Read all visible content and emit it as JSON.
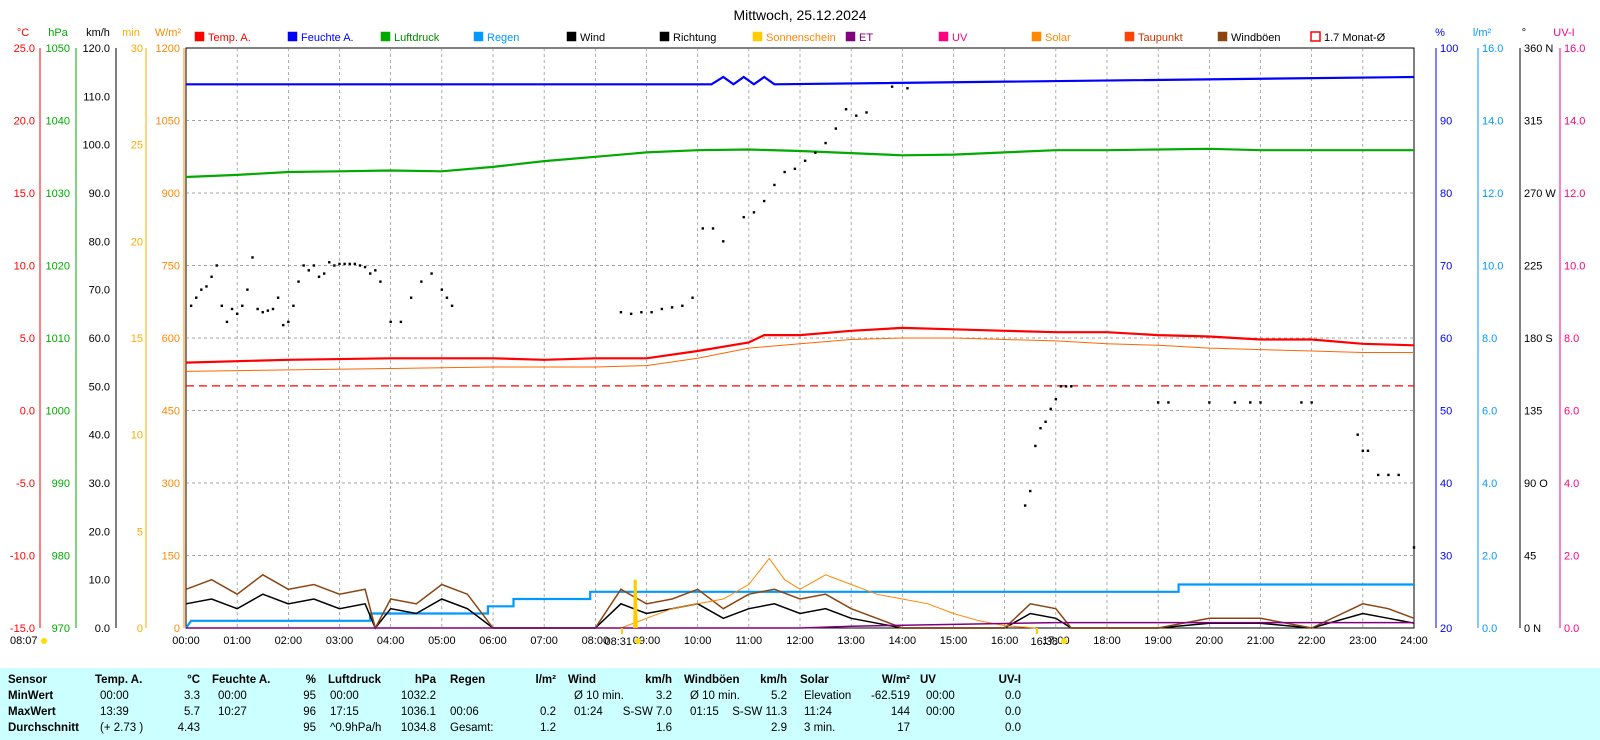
{
  "title": "Mittwoch, 25.12.2024",
  "legend": [
    {
      "label": "Temp. A.",
      "color": "#ff0000"
    },
    {
      "label": "Feuchte A.",
      "color": "#0000ff"
    },
    {
      "label": "Luftdruck",
      "color": "#00aa00"
    },
    {
      "label": "Regen",
      "color": "#0099ff"
    },
    {
      "label": "Wind",
      "color": "#000000"
    },
    {
      "label": "Richtung",
      "color": "#000000"
    },
    {
      "label": "Sonnenschein",
      "color": "#ffcc00"
    },
    {
      "label": "ET",
      "color": "#800080"
    },
    {
      "label": "UV",
      "color": "#ff0080"
    },
    {
      "label": "Solar",
      "color": "#ff8800"
    },
    {
      "label": "Taupunkt",
      "color": "#ff4400"
    },
    {
      "label": "Windböen",
      "color": "#8b4513"
    },
    {
      "label": "1.7 Monat-Ø",
      "color": "#ff0000"
    }
  ],
  "axes_left": [
    {
      "unit": "°C",
      "color": "#ff0000",
      "ticks": [
        "25.0",
        "20.0",
        "15.0",
        "10.0",
        "5.0",
        "0.0",
        "-5.0",
        "-10.0",
        "-15.0"
      ]
    },
    {
      "unit": "hPa",
      "color": "#00aa00",
      "ticks": [
        "1050",
        "1040",
        "1030",
        "1020",
        "1010",
        "1000",
        "990",
        "980",
        "970"
      ]
    },
    {
      "unit": "km/h",
      "color": "#000000",
      "ticks": [
        "120.0",
        "110.0",
        "100.0",
        "90.0",
        "80.0",
        "70.0",
        "60.0",
        "50.0",
        "40.0",
        "30.0",
        "20.0",
        "10.0",
        "0.0"
      ]
    },
    {
      "unit": "min",
      "color": "#ffaa00",
      "ticks": [
        "30",
        "25",
        "20",
        "15",
        "10",
        "5",
        "0"
      ]
    },
    {
      "unit": "W/m²",
      "color": "#ff8800",
      "ticks": [
        "1200",
        "1050",
        "900",
        "750",
        "600",
        "450",
        "300",
        "150",
        "0"
      ]
    }
  ],
  "axes_right": [
    {
      "unit": "%",
      "color": "#0000ff",
      "ticks": [
        "100",
        "90",
        "80",
        "70",
        "60",
        "50",
        "40",
        "30",
        "20"
      ]
    },
    {
      "unit": "l/m²",
      "color": "#0099ff",
      "ticks": [
        "16.0",
        "14.0",
        "12.0",
        "10.0",
        "8.0",
        "6.0",
        "4.0",
        "2.0",
        "0.0"
      ]
    },
    {
      "unit": "°",
      "color": "#000000",
      "ticks": [
        "360 N",
        "315",
        "270 W",
        "225",
        "180 S",
        "135",
        "90 O",
        "45",
        "0 N"
      ]
    },
    {
      "unit": "UV-I",
      "color": "#ff0080",
      "ticks": [
        "16.0",
        "14.0",
        "12.0",
        "10.0",
        "8.0",
        "6.0",
        "4.0",
        "2.0",
        "0.0"
      ]
    }
  ],
  "x_ticks": [
    "00:00",
    "01:00",
    "02:00",
    "03:00",
    "04:00",
    "05:00",
    "06:00",
    "07:00",
    "08:00",
    "09:00",
    "10:00",
    "11:00",
    "12:00",
    "13:00",
    "14:00",
    "15:00",
    "16:00",
    "17:00",
    "18:00",
    "19:00",
    "20:00",
    "21:00",
    "22:00",
    "23:00",
    "24:00"
  ],
  "sun_events": {
    "sunrise_label": "08:07",
    "sunrise_time": "08:31",
    "sunset_time": "16:38"
  },
  "chart_data": {
    "type": "line",
    "title": "Mittwoch, 25.12.2024",
    "x_unit": "hours",
    "xlim": [
      0,
      24
    ],
    "series": [
      {
        "name": "Temp. A.",
        "unit": "°C",
        "color": "#ff0000",
        "x": [
          0,
          2,
          4,
          6,
          7,
          8,
          9,
          10,
          11,
          11.3,
          12,
          13,
          14,
          15,
          16,
          17,
          18,
          19,
          20,
          21,
          22,
          23,
          24
        ],
        "values": [
          3.3,
          3.5,
          3.6,
          3.6,
          3.5,
          3.6,
          3.6,
          4.1,
          4.7,
          5.2,
          5.2,
          5.5,
          5.7,
          5.6,
          5.5,
          5.4,
          5.4,
          5.2,
          5.1,
          4.9,
          4.9,
          4.6,
          4.5
        ]
      },
      {
        "name": "Taupunkt",
        "unit": "°C",
        "color": "#ff6600",
        "x": [
          0,
          2,
          4,
          6,
          8,
          9,
          10,
          11,
          12,
          13,
          14,
          15,
          16,
          17,
          18,
          19,
          20,
          21,
          22,
          23,
          24
        ],
        "values": [
          2.7,
          2.8,
          2.9,
          3.0,
          3.0,
          3.1,
          3.6,
          4.3,
          4.6,
          4.9,
          5.0,
          5.0,
          4.9,
          4.8,
          4.6,
          4.5,
          4.3,
          4.2,
          4.1,
          4.0,
          4.0
        ]
      },
      {
        "name": "Feuchte A.",
        "unit": "%",
        "color": "#0000ff",
        "x": [
          0,
          10.27,
          10.5,
          10.7,
          10.9,
          11.1,
          11.3,
          11.5,
          24
        ],
        "values": [
          95,
          95,
          96,
          95,
          96,
          95,
          96,
          95,
          96
        ]
      },
      {
        "name": "Luftdruck",
        "unit": "hPa",
        "color": "#00aa00",
        "x": [
          0,
          1,
          2,
          3,
          4,
          5,
          6,
          7,
          8,
          9,
          10,
          11,
          12,
          13,
          14,
          15,
          16,
          17,
          18,
          19,
          20,
          21,
          22,
          23,
          24
        ],
        "values": [
          1032.2,
          1032.5,
          1032.9,
          1033.0,
          1033.1,
          1033.0,
          1033.6,
          1034.4,
          1035.0,
          1035.6,
          1035.9,
          1036.0,
          1035.8,
          1035.5,
          1035.2,
          1035.3,
          1035.6,
          1035.9,
          1035.9,
          1036.0,
          1036.1,
          1035.9,
          1035.9,
          1035.9,
          1035.9
        ]
      },
      {
        "name": "1.7 Monat-Ø",
        "unit": "°C",
        "color": "#ff0000",
        "x": [
          0,
          24
        ],
        "values": [
          1.7,
          1.7
        ]
      },
      {
        "name": "Regen",
        "unit": "l/m²",
        "color": "#0099ff",
        "x": [
          0,
          0.1,
          3.6,
          3.6,
          5.9,
          5.9,
          6.4,
          6.4,
          7.9,
          7.9,
          19.4,
          19.4,
          24
        ],
        "values": [
          0,
          0.2,
          0.2,
          0.4,
          0.4,
          0.6,
          0.6,
          0.8,
          0.8,
          1.0,
          1.0,
          1.2,
          1.2
        ]
      },
      {
        "name": "Wind",
        "unit": "km/h",
        "color": "#000000",
        "x": [
          0,
          0.5,
          1,
          1.5,
          2,
          2.5,
          3,
          3.5,
          3.7,
          4,
          4.5,
          5,
          5.5,
          6,
          8,
          8.5,
          9,
          9.5,
          10,
          10.5,
          11,
          11.5,
          12,
          12.5,
          13,
          13.5,
          14,
          16,
          16.5,
          17,
          17.3,
          19,
          20,
          21,
          22,
          23,
          23.5,
          24
        ],
        "values": [
          5,
          6,
          4,
          7,
          5,
          6,
          4,
          5,
          0,
          4,
          3,
          6,
          4,
          0,
          0,
          5,
          3,
          4,
          5,
          2,
          4,
          5,
          3,
          4,
          2,
          1,
          0,
          0,
          3,
          2,
          0,
          0,
          1,
          1,
          0,
          3,
          2,
          1
        ]
      },
      {
        "name": "Windböen",
        "unit": "km/h",
        "color": "#8b4513",
        "x": [
          0,
          0.5,
          1,
          1.5,
          2,
          2.5,
          3,
          3.5,
          3.7,
          4,
          4.5,
          5,
          5.5,
          6,
          8,
          8.5,
          9,
          9.5,
          10,
          10.5,
          11,
          11.5,
          12,
          12.5,
          13,
          13.5,
          14,
          16,
          16.5,
          17,
          17.3,
          19,
          20,
          21,
          22,
          23,
          23.5,
          24
        ],
        "values": [
          8,
          10,
          7,
          11,
          8,
          9,
          7,
          8,
          0,
          6,
          5,
          9,
          7,
          0,
          0,
          8,
          5,
          6,
          8,
          4,
          7,
          8,
          6,
          7,
          4,
          2,
          0,
          0,
          5,
          4,
          0,
          0,
          2,
          2,
          0,
          5,
          4,
          2
        ]
      },
      {
        "name": "Solar",
        "unit": "W/m²",
        "color": "#ff8800",
        "x": [
          8.5,
          9,
          9.5,
          10,
          10.5,
          11,
          11.4,
          11.7,
          12,
          12.5,
          13,
          13.5,
          14,
          14.5,
          15,
          15.5,
          16,
          16.6
        ],
        "values": [
          0,
          20,
          40,
          50,
          60,
          90,
          144,
          100,
          80,
          110,
          90,
          70,
          60,
          50,
          30,
          15,
          5,
          0
        ]
      },
      {
        "name": "ET",
        "unit": "l/m²",
        "color": "#800080",
        "x": [
          0,
          12,
          13,
          15,
          17,
          24
        ],
        "values": [
          0,
          0,
          0.05,
          0.1,
          0.15,
          0.15
        ]
      },
      {
        "name": "Richtung",
        "unit": "°",
        "type": "scatter",
        "color": "#000000",
        "x": [
          0.1,
          0.2,
          0.3,
          0.4,
          0.5,
          0.6,
          0.7,
          0.8,
          0.9,
          1.0,
          1.1,
          1.2,
          1.3,
          1.4,
          1.5,
          1.6,
          1.7,
          1.8,
          1.9,
          2.0,
          2.1,
          2.2,
          2.3,
          2.4,
          2.5,
          2.6,
          2.7,
          2.8,
          2.9,
          3.0,
          3.1,
          3.2,
          3.3,
          3.4,
          3.5,
          3.6,
          3.7,
          3.8,
          4.0,
          4.2,
          4.4,
          4.6,
          4.8,
          5.0,
          5.1,
          5.2,
          8.5,
          8.7,
          8.9,
          9.1,
          9.3,
          9.5,
          9.7,
          9.9,
          10.1,
          10.3,
          10.5,
          10.9,
          11.1,
          11.3,
          11.5,
          11.7,
          11.9,
          12.1,
          12.3,
          12.5,
          12.7,
          12.9,
          13.1,
          13.3,
          13.8,
          14.1,
          16.4,
          16.5,
          16.6,
          16.7,
          16.8,
          16.9,
          17.0,
          17.1,
          17.2,
          17.3,
          19.0,
          19.2,
          20.0,
          20.5,
          20.8,
          21.0,
          21.8,
          22.0,
          22.9,
          23.0,
          23.1,
          23.3,
          23.5,
          23.7,
          24.0
        ],
        "values": [
          200,
          205,
          210,
          212,
          218,
          225,
          200,
          190,
          198,
          195,
          200,
          210,
          230,
          198,
          196,
          197,
          198,
          205,
          188,
          190,
          200,
          215,
          225,
          222,
          225,
          218,
          220,
          227,
          225,
          226,
          226,
          226,
          226,
          225,
          224,
          220,
          222,
          215,
          190,
          190,
          205,
          215,
          220,
          210,
          205,
          200,
          196,
          195,
          196,
          196,
          198,
          199,
          200,
          205,
          248,
          248,
          240,
          255,
          258,
          265,
          275,
          283,
          285,
          290,
          295,
          301,
          310,
          322,
          318,
          320,
          336,
          335,
          76,
          85,
          113,
          124,
          128,
          136,
          142,
          150,
          150,
          150,
          140,
          140,
          140,
          140,
          140,
          140,
          140,
          140,
          120,
          110,
          110,
          95,
          95,
          95,
          50
        ]
      },
      {
        "name": "Sonnenschein",
        "unit": "min",
        "color": "#ffcc00",
        "x": [
          8.77,
          8.78,
          8.8
        ],
        "values": [
          0,
          2.5,
          0
        ]
      }
    ]
  },
  "summary": {
    "headers": {
      "sensor": "Sensor",
      "temp": "Temp. A.",
      "temp_unit": "°C",
      "hum": "Feuchte A.",
      "hum_unit": "%",
      "press": "Luftdruck",
      "press_unit": "hPa",
      "rain": "Regen",
      "rain_unit": "l/m²",
      "wind": "Wind",
      "wind_unit": "km/h",
      "gust": "Windböen",
      "gust_unit": "km/h",
      "solar": "Solar",
      "solar_unit": "W/m²",
      "uv": "UV",
      "uv_unit": "UV-I"
    },
    "rows": [
      {
        "label": "MinWert",
        "temp_t": "00:00",
        "temp_v": "3.3",
        "hum_t": "00:00",
        "hum_v": "95",
        "press_t": "00:00",
        "press_v": "1032.2",
        "rain_t": "",
        "rain_v": "",
        "wind_t": "Ø 10 min.",
        "wind_v": "3.2",
        "gust_t": "Ø 10 min.",
        "gust_v": "5.2",
        "solar_t": "Elevation",
        "solar_v": "-62.519",
        "uv_t": "00:00",
        "uv_v": "0.0"
      },
      {
        "label": "MaxWert",
        "temp_t": "13:39",
        "temp_v": "5.7",
        "hum_t": "10:27",
        "hum_v": "96",
        "press_t": "17:15",
        "press_v": "1036.1",
        "rain_t": "00:06",
        "rain_v": "0.2",
        "wind_t": "01:24",
        "wind_v": "S-SW 7.0",
        "gust_t": "01:15",
        "gust_v": "S-SW 11.3",
        "solar_t": "11:24",
        "solar_v": "144",
        "uv_t": "00:00",
        "uv_v": "0.0"
      },
      {
        "label": "Durchschnitt",
        "temp_t": "(+ 2.73 )",
        "temp_v": "4.43",
        "hum_t": "",
        "hum_v": "95",
        "press_t": "^0.9hPa/h",
        "press_v": "1034.8",
        "rain_t": "Gesamt:",
        "rain_v": "1.2",
        "wind_t": "",
        "wind_v": "1.6",
        "gust_t": "",
        "gust_v": "2.9",
        "solar_t": "3 min.",
        "solar_v": "17",
        "uv_t": "",
        "uv_v": "0.0"
      }
    ]
  }
}
